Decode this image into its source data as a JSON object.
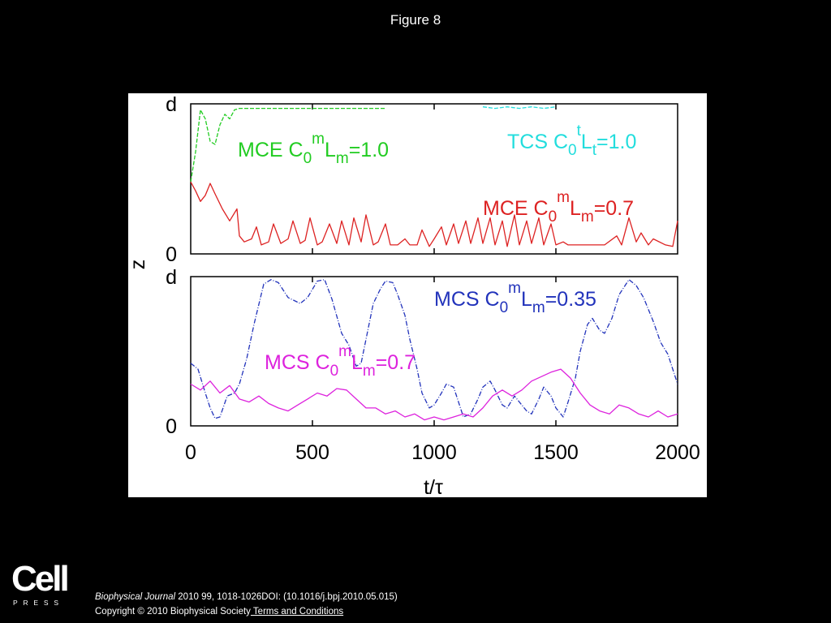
{
  "slide": {
    "title": "Figure 8"
  },
  "footer": {
    "logo_word": "Cell",
    "logo_press": "PRESS",
    "journal": "Biophysical Journal",
    "citation_rest": " 2010 99, 1018-1026DOI: (10.1016/j.bpj.2010.05.015)",
    "copyright": "Copyright © 2010 Biophysical Society",
    "terms_link": " Terms and Conditions"
  },
  "chart_data": {
    "type": "line",
    "xlabel": "t/τ",
    "ylabel": "z",
    "xlim": [
      0,
      2000
    ],
    "x_ticks": [
      "0",
      "500",
      "1000",
      "1500",
      "2000"
    ],
    "grid": false,
    "panels": [
      {
        "name": "top",
        "ylim": [
          0,
          1
        ],
        "y_ticks": [
          {
            "value": 0,
            "label": "0"
          },
          {
            "value": 1,
            "label": "d"
          }
        ],
        "series": [
          {
            "name": "MCE C0mLm=1.0",
            "label_parts": [
              "MCE C",
              "0",
              "m",
              "L",
              "m",
              "=1.0"
            ],
            "color": "#22cc22",
            "style": "dashed",
            "x": [
              0,
              20,
              40,
              60,
              80,
              100,
              120,
              140,
              160,
              180,
              200,
              250,
              300,
              400,
              500,
              600,
              700,
              800
            ],
            "y": [
              0.48,
              0.68,
              0.96,
              0.9,
              0.75,
              0.73,
              0.86,
              0.93,
              0.9,
              0.96,
              0.97,
              0.97,
              0.97,
              0.97,
              0.97,
              0.97,
              0.97,
              0.97
            ]
          },
          {
            "name": "TCS C0tLt=1.0",
            "label_parts": [
              "TCS C",
              "0",
              "t",
              "L",
              "t",
              "=1.0"
            ],
            "color": "#22dddd",
            "style": "dashed",
            "x": [
              1200,
              1250,
              1300,
              1350,
              1400,
              1450,
              1500
            ],
            "y": [
              0.98,
              0.97,
              0.98,
              0.97,
              0.98,
              0.97,
              0.98
            ]
          },
          {
            "name": "MCE C0mLm=0.7",
            "label_parts": [
              "MCE C",
              "0",
              "m",
              "L",
              "m",
              "=0.7"
            ],
            "color": "#dd2222",
            "style": "solid",
            "x": [
              0,
              20,
              40,
              60,
              80,
              100,
              130,
              160,
              190,
              200,
              220,
              250,
              270,
              290,
              320,
              340,
              370,
              400,
              420,
              450,
              470,
              490,
              520,
              540,
              570,
              600,
              620,
              650,
              670,
              700,
              720,
              750,
              770,
              800,
              820,
              850,
              880,
              900,
              930,
              950,
              980,
              1000,
              1030,
              1050,
              1080,
              1100,
              1130,
              1150,
              1180,
              1200,
              1230,
              1250,
              1280,
              1300,
              1330,
              1350,
              1380,
              1400,
              1430,
              1450,
              1480,
              1500,
              1530,
              1550,
              1600,
              1650,
              1700,
              1750,
              1770,
              1800,
              1830,
              1850,
              1880,
              1900,
              1950,
              1980,
              2000
            ],
            "y": [
              0.48,
              0.42,
              0.35,
              0.39,
              0.47,
              0.4,
              0.3,
              0.22,
              0.3,
              0.12,
              0.08,
              0.1,
              0.18,
              0.06,
              0.08,
              0.2,
              0.07,
              0.1,
              0.22,
              0.07,
              0.09,
              0.24,
              0.06,
              0.08,
              0.2,
              0.07,
              0.22,
              0.06,
              0.24,
              0.08,
              0.26,
              0.06,
              0.08,
              0.2,
              0.06,
              0.06,
              0.1,
              0.06,
              0.06,
              0.16,
              0.05,
              0.1,
              0.18,
              0.06,
              0.2,
              0.07,
              0.22,
              0.07,
              0.24,
              0.07,
              0.24,
              0.06,
              0.22,
              0.05,
              0.26,
              0.06,
              0.22,
              0.07,
              0.24,
              0.06,
              0.2,
              0.06,
              0.08,
              0.06,
              0.06,
              0.06,
              0.06,
              0.12,
              0.06,
              0.24,
              0.08,
              0.14,
              0.06,
              0.1,
              0.06,
              0.05,
              0.22
            ]
          }
        ]
      },
      {
        "name": "bottom",
        "ylim": [
          0,
          1
        ],
        "y_ticks": [
          {
            "value": 0,
            "label": "0"
          },
          {
            "value": 1,
            "label": "d"
          }
        ],
        "series": [
          {
            "name": "MCS C0mLm=0.35",
            "label_parts": [
              "MCS C",
              "0",
              "m",
              "L",
              "m",
              "=0.35"
            ],
            "color": "#2233bb",
            "style": "dashdot",
            "x": [
              0,
              30,
              60,
              80,
              100,
              120,
              150,
              180,
              200,
              230,
              260,
              300,
              330,
              360,
              400,
              450,
              480,
              520,
              550,
              580,
              620,
              650,
              680,
              700,
              720,
              750,
              780,
              800,
              830,
              850,
              880,
              900,
              930,
              950,
              980,
              1000,
              1030,
              1050,
              1080,
              1100,
              1120,
              1150,
              1180,
              1200,
              1230,
              1250,
              1280,
              1300,
              1330,
              1350,
              1380,
              1400,
              1430,
              1450,
              1480,
              1500,
              1530,
              1550,
              1580,
              1600,
              1630,
              1650,
              1680,
              1700,
              1730,
              1760,
              1800,
              1830,
              1860,
              1900,
              1930,
              1960,
              2000
            ],
            "y": [
              0.42,
              0.38,
              0.22,
              0.12,
              0.05,
              0.06,
              0.2,
              0.22,
              0.28,
              0.45,
              0.68,
              0.95,
              0.98,
              0.96,
              0.86,
              0.82,
              0.86,
              0.97,
              0.98,
              0.85,
              0.62,
              0.54,
              0.4,
              0.42,
              0.58,
              0.82,
              0.92,
              0.97,
              0.96,
              0.88,
              0.74,
              0.58,
              0.38,
              0.22,
              0.12,
              0.14,
              0.22,
              0.28,
              0.26,
              0.16,
              0.06,
              0.08,
              0.18,
              0.26,
              0.3,
              0.24,
              0.14,
              0.12,
              0.2,
              0.16,
              0.1,
              0.08,
              0.18,
              0.26,
              0.2,
              0.12,
              0.06,
              0.16,
              0.32,
              0.5,
              0.68,
              0.72,
              0.64,
              0.62,
              0.72,
              0.88,
              0.98,
              0.94,
              0.86,
              0.7,
              0.56,
              0.48,
              0.28
            ]
          },
          {
            "name": "MCS C0mLm=0.7",
            "label_parts": [
              "MCS C",
              "0",
              "m",
              "L",
              "m",
              "=0.7"
            ],
            "color": "#dd22dd",
            "style": "solid",
            "x": [
              0,
              40,
              80,
              120,
              160,
              200,
              240,
              280,
              320,
              360,
              400,
              440,
              480,
              520,
              560,
              600,
              640,
              680,
              720,
              760,
              800,
              840,
              880,
              920,
              960,
              1000,
              1040,
              1080,
              1120,
              1160,
              1200,
              1240,
              1280,
              1320,
              1360,
              1400,
              1440,
              1480,
              1520,
              1560,
              1600,
              1640,
              1680,
              1720,
              1760,
              1800,
              1840,
              1880,
              1920,
              1960,
              2000
            ],
            "y": [
              0.28,
              0.24,
              0.3,
              0.22,
              0.27,
              0.18,
              0.16,
              0.2,
              0.15,
              0.12,
              0.1,
              0.14,
              0.18,
              0.22,
              0.2,
              0.25,
              0.24,
              0.18,
              0.12,
              0.12,
              0.08,
              0.1,
              0.06,
              0.08,
              0.04,
              0.06,
              0.04,
              0.06,
              0.08,
              0.06,
              0.12,
              0.2,
              0.24,
              0.2,
              0.24,
              0.3,
              0.33,
              0.36,
              0.38,
              0.32,
              0.22,
              0.14,
              0.1,
              0.08,
              0.14,
              0.12,
              0.08,
              0.06,
              0.1,
              0.06,
              0.08
            ]
          }
        ]
      }
    ]
  }
}
